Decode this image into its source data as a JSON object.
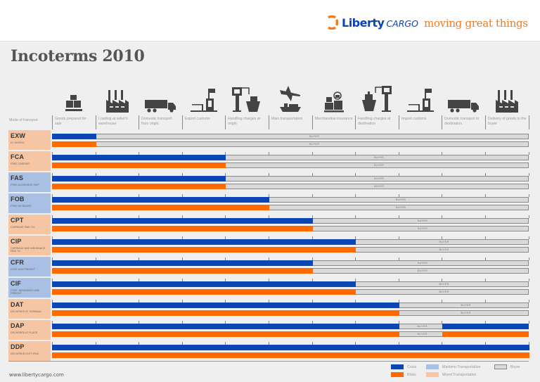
{
  "header": {
    "brand_primary": "Liberty",
    "brand_secondary": "CARGO",
    "tagline": "moving great things",
    "colors": {
      "brand_blue": "#0a44b8",
      "brand_orange": "#f07a1e"
    }
  },
  "title": "Incoterms 2010",
  "mode_label": "Mode of transport",
  "columns": [
    {
      "label": "Goods prepared for sale",
      "icon": "boxes-pallet-icon"
    },
    {
      "label": "Loading at seller's warehouse",
      "icon": "factory-icon"
    },
    {
      "label": "Domestic transport from origin",
      "icon": "truck-icon"
    },
    {
      "label": "Export customs",
      "icon": "customs-flag-icon"
    },
    {
      "label": "Handling charges at origin",
      "icon": "crane-ship-icon"
    },
    {
      "label": "Main transportation",
      "icon": "plane-ship-icon"
    },
    {
      "label": "Merchandise insurance",
      "icon": "insured-boxes-icon"
    },
    {
      "label": "Handling charges at destination",
      "icon": "ship-crane-icon"
    },
    {
      "label": "Import customs",
      "icon": "customs-flag-icon"
    },
    {
      "label": "Domestic transport to destination",
      "icon": "truck-icon"
    },
    {
      "label": "Delivery of goods to the buyer",
      "icon": "factory-icon"
    }
  ],
  "buyer_label": "BUYER",
  "terms": [
    {
      "code": "EXW",
      "name": "EX WORKS",
      "transport": "mixed",
      "costs_until": 1,
      "risks_until": 1
    },
    {
      "code": "FCA",
      "name": "FREE CARRIER",
      "transport": "mixed",
      "costs_until": 4,
      "risks_until": 4
    },
    {
      "code": "FAS",
      "name": "FREE ALONGSIDE SHIP",
      "transport": "maritime",
      "costs_until": 4,
      "risks_until": 4
    },
    {
      "code": "FOB",
      "name": "FREE ON BOARD",
      "transport": "maritime",
      "costs_until": 5,
      "risks_until": 5
    },
    {
      "code": "CPT",
      "name": "CARRIAGE PAID TO",
      "transport": "mixed",
      "costs_until": 6,
      "risks_until": 6
    },
    {
      "code": "CIP",
      "name": "CARRIAGE AND INSURANCE PAID TO",
      "transport": "mixed",
      "costs_until": 7,
      "risks_until": 7
    },
    {
      "code": "CFR",
      "name": "COST AND FREIGHT",
      "transport": "maritime",
      "costs_until": 6,
      "risks_until": 6
    },
    {
      "code": "CIF",
      "name": "COST, INSURANCE AND FREIGHT",
      "transport": "maritime",
      "costs_until": 7,
      "risks_until": 7
    },
    {
      "code": "DAT",
      "name": "DELIVERED AT TERMINAL",
      "transport": "mixed",
      "costs_until": 8,
      "risks_until": 8
    },
    {
      "code": "DAP",
      "name": "DELIVERED AT PLACE",
      "transport": "mixed",
      "costs_until": 8,
      "risks_until": 8,
      "buyer_span": [
        8,
        9
      ],
      "seller_after": 9
    },
    {
      "code": "DDP",
      "name": "DELIVERED DUTY PAID",
      "transport": "mixed",
      "costs_until": 11,
      "risks_until": 11
    }
  ],
  "legend": {
    "costs": {
      "label": "Costs",
      "color": "#0a47b5"
    },
    "risks": {
      "label": "Risks",
      "color": "#ff6a00"
    },
    "maritime": {
      "label": "Maritime Transportation",
      "color": "#a9bfe3"
    },
    "mixed": {
      "label": "Mixed Transportation",
      "color": "#f6c6a4"
    },
    "buyer": {
      "label": "Buyer",
      "color": "#d9d9d9"
    }
  },
  "footer": {
    "website": "www.libertycargo.com"
  }
}
